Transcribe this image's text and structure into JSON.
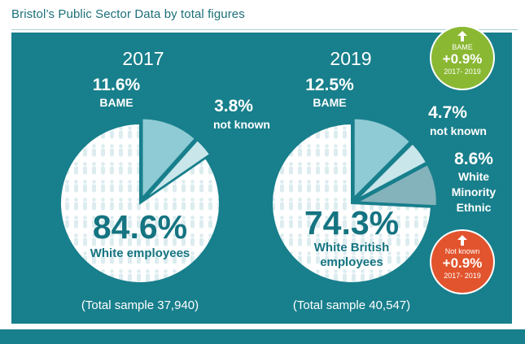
{
  "title": "Bristol’s Public Sector Data by total figures",
  "colors": {
    "panel": "#187f8c",
    "pie_base": "#ffffff",
    "bame": "#8fcbd4",
    "not_known": "#c9e6ea",
    "white_minority": "#84b3bb",
    "main_text": "#157481",
    "bubble_green": "#8ab833",
    "bubble_orange": "#e2542d"
  },
  "chart_data": [
    {
      "type": "pie",
      "year": "2017",
      "slices": [
        {
          "key": "bame",
          "value": 11.6,
          "pct": "11.6%",
          "label": "BAME",
          "color": "#8fcbd4"
        },
        {
          "key": "not_known",
          "value": 3.8,
          "pct": "3.8%",
          "label": "not known",
          "color": "#c9e6ea"
        },
        {
          "key": "white",
          "value": 84.6,
          "pct": "84.6%",
          "label": "White employees",
          "color": "#ffffff"
        }
      ],
      "main_pct": "84.6%",
      "main_label": "White employees",
      "total_note": "(Total sample 37,940)"
    },
    {
      "type": "pie",
      "year": "2019",
      "slices": [
        {
          "key": "bame",
          "value": 12.5,
          "pct": "12.5%",
          "label": "BAME",
          "color": "#8fcbd4"
        },
        {
          "key": "not_known",
          "value": 4.7,
          "pct": "4.7%",
          "label": "not known",
          "color": "#c9e6ea"
        },
        {
          "key": "white_minority",
          "value": 8.6,
          "pct": "8.6%",
          "label": "White Minority Ethnic",
          "color": "#84b3bb"
        },
        {
          "key": "white_british",
          "value": 74.3,
          "pct": "74.3%",
          "label": "White British employees",
          "color": "#ffffff"
        }
      ],
      "main_pct": "74.3%",
      "main_label_line1": "White British",
      "main_label_line2": "employees",
      "total_note": "(Total sample 40,547)"
    }
  ],
  "badges": [
    {
      "label": "BAME",
      "value": "+0.9%",
      "period": "2017- 2019",
      "direction": "up"
    },
    {
      "label": "Not known",
      "value": "+0.9%",
      "period": "2017- 2019",
      "direction": "up"
    }
  ],
  "labels": {
    "y2017": {
      "bame_pct": "11.6%",
      "bame": "BAME",
      "nk_pct": "3.8%",
      "nk": "not known"
    },
    "y2019": {
      "bame_pct": "12.5%",
      "bame": "BAME",
      "nk_pct": "4.7%",
      "nk": "not known",
      "wm_pct": "8.6%",
      "wm_line1": "White",
      "wm_line2": "Minority",
      "wm_line3": "Ethnic"
    }
  }
}
